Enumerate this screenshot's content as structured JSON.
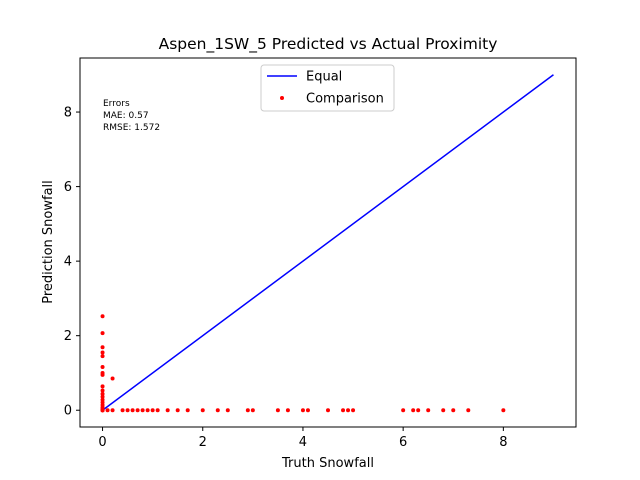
{
  "chart_data": {
    "type": "scatter",
    "title": "Aspen_1SW_5 Predicted vs Actual Proximity",
    "xlabel": "Truth Snowfall",
    "ylabel": "Prediction Snowfall",
    "xlim": [
      -0.45,
      9.45
    ],
    "ylim": [
      -0.45,
      9.45
    ],
    "xticks": [
      0,
      2,
      4,
      6,
      8
    ],
    "yticks": [
      0,
      2,
      4,
      6,
      8
    ],
    "grid": false,
    "legend_position": "top-center",
    "annotation": {
      "lines": [
        "Errors",
        "MAE: 0.57",
        "RMSE: 1.572"
      ]
    },
    "series": [
      {
        "name": "Equal",
        "kind": "line",
        "color": "#0000ff",
        "x": [
          0,
          9
        ],
        "y": [
          0,
          9
        ]
      },
      {
        "name": "Comparison",
        "kind": "scatter",
        "color": "#ff0000",
        "x": [
          0,
          0,
          0,
          0,
          0,
          0,
          0,
          0,
          0,
          0,
          0,
          0,
          0,
          0,
          0,
          0,
          0,
          0,
          0,
          0,
          0,
          0,
          0.2,
          0.1,
          0.2,
          0.4,
          0.5,
          0.6,
          0.7,
          0.8,
          0.9,
          1.0,
          1.1,
          1.3,
          1.5,
          1.7,
          2.0,
          2.3,
          2.5,
          2.9,
          3.0,
          3.5,
          3.7,
          4.0,
          4.1,
          4.5,
          4.8,
          4.9,
          5.0,
          6.0,
          6.2,
          6.3,
          6.5,
          6.8,
          7.0,
          7.3,
          8.0
        ],
        "y": [
          2.52,
          2.07,
          1.69,
          1.55,
          1.45,
          1.16,
          1.0,
          0.95,
          0.64,
          0.53,
          0.44,
          0.36,
          0.28,
          0.21,
          0.14,
          0.08,
          0.04,
          0.0,
          0.0,
          0.0,
          0.0,
          0.0,
          0.85,
          0.0,
          0.0,
          0.0,
          0.0,
          0.0,
          0.0,
          0.0,
          0.0,
          0.0,
          0.0,
          0.0,
          0.0,
          0.0,
          0.0,
          0.0,
          0.0,
          0.0,
          0.0,
          0.0,
          0.0,
          0.0,
          0.0,
          0.0,
          0.0,
          0.0,
          0.0,
          0.0,
          0.0,
          0.0,
          0.0,
          0.0,
          0.0,
          0.0,
          0.0
        ]
      }
    ]
  }
}
